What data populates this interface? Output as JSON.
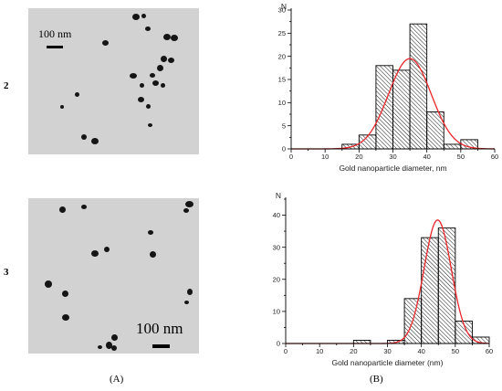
{
  "rows": [
    {
      "label": "2",
      "tem": {
        "scale_label": "100 nm"
      },
      "chart_data": {
        "type": "bar",
        "y_label": "N",
        "xlabel": "Gold nanoparticle diameter, nm",
        "xlim": [
          0,
          60
        ],
        "ylim": [
          0,
          30
        ],
        "x_ticks": [
          0,
          10,
          20,
          30,
          40,
          50,
          60
        ],
        "y_ticks": [
          0,
          5,
          10,
          15,
          20,
          25,
          30
        ],
        "bins": [
          {
            "start": 15,
            "end": 20,
            "count": 1
          },
          {
            "start": 20,
            "end": 25,
            "count": 3
          },
          {
            "start": 25,
            "end": 30,
            "count": 18
          },
          {
            "start": 30,
            "end": 35,
            "count": 17
          },
          {
            "start": 35,
            "end": 40,
            "count": 27
          },
          {
            "start": 40,
            "end": 45,
            "count": 8
          },
          {
            "start": 45,
            "end": 50,
            "count": 1
          },
          {
            "start": 50,
            "end": 55,
            "count": 2
          }
        ],
        "fit": {
          "type": "gaussian",
          "mean": 35,
          "sigma": 6.3,
          "peak": 19.5,
          "color": "#e8262b"
        }
      }
    },
    {
      "label": "3",
      "tem": {
        "scale_label": "100 nm"
      },
      "chart_data": {
        "type": "bar",
        "y_label": "N",
        "xlabel": "Gold nanoparticle diameter (nm)",
        "xlim": [
          0,
          60
        ],
        "ylim": [
          0,
          45
        ],
        "x_ticks": [
          0,
          10,
          20,
          30,
          40,
          50,
          60
        ],
        "y_ticks": [
          0,
          10,
          20,
          30,
          40
        ],
        "bins": [
          {
            "start": 20,
            "end": 25,
            "count": 1
          },
          {
            "start": 30,
            "end": 35,
            "count": 1
          },
          {
            "start": 35,
            "end": 40,
            "count": 14
          },
          {
            "start": 40,
            "end": 45,
            "count": 33
          },
          {
            "start": 45,
            "end": 50,
            "count": 36
          },
          {
            "start": 50,
            "end": 55,
            "count": 7
          },
          {
            "start": 55,
            "end": 60,
            "count": 2
          }
        ],
        "fit": {
          "type": "gaussian",
          "mean": 44.8,
          "sigma": 4.0,
          "peak": 38.5,
          "color": "#e8262b"
        }
      }
    }
  ],
  "panel_labels": {
    "left": "(A)",
    "right": "(B)"
  }
}
